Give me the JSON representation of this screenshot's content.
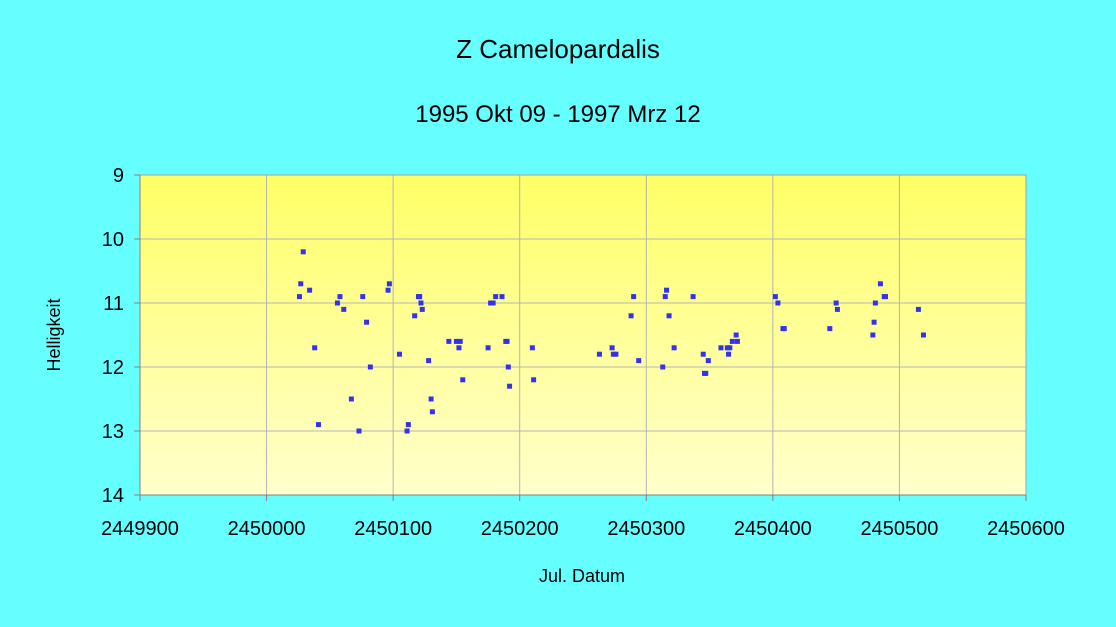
{
  "chart_data": {
    "type": "scatter",
    "title": "Z Camelopardalis",
    "subtitle": "1995 Okt 09 - 1997 Mrz 12",
    "xlabel": "Jul. Datum",
    "ylabel": "Helligkeit",
    "xlim": [
      2449900,
      2450600
    ],
    "ylim": [
      9,
      14
    ],
    "y_inverted": true,
    "grid": true,
    "x_ticks": [
      "2449900",
      "2450000",
      "2450100",
      "2450200",
      "2450300",
      "2450400",
      "2450500",
      "2450600"
    ],
    "y_ticks": [
      "9",
      "10",
      "11",
      "12",
      "13",
      "14"
    ],
    "colors": {
      "background": "#66ffff",
      "plot_top": "#ffff66",
      "plot_bottom": "#ffffcc",
      "marker": "#3333ee",
      "grid": "#b4b4b4"
    },
    "points": [
      [
        2450026,
        10.9
      ],
      [
        2450027,
        10.7
      ],
      [
        2450029,
        10.2
      ],
      [
        2450034,
        10.8
      ],
      [
        2450038,
        11.7
      ],
      [
        2450041,
        12.9
      ],
      [
        2450056,
        11.0
      ],
      [
        2450058,
        10.9
      ],
      [
        2450061,
        11.1
      ],
      [
        2450067,
        12.5
      ],
      [
        2450073,
        13.0
      ],
      [
        2450076,
        10.9
      ],
      [
        2450079,
        11.3
      ],
      [
        2450082,
        12.0
      ],
      [
        2450096,
        10.8
      ],
      [
        2450097,
        10.7
      ],
      [
        2450105,
        11.8
      ],
      [
        2450111,
        13.0
      ],
      [
        2450112,
        12.9
      ],
      [
        2450117,
        11.2
      ],
      [
        2450120,
        10.9
      ],
      [
        2450121,
        10.9
      ],
      [
        2450122,
        11.0
      ],
      [
        2450123,
        11.1
      ],
      [
        2450128,
        11.9
      ],
      [
        2450130,
        12.5
      ],
      [
        2450131,
        12.7
      ],
      [
        2450144,
        11.6
      ],
      [
        2450150,
        11.6
      ],
      [
        2450152,
        11.7
      ],
      [
        2450153,
        11.6
      ],
      [
        2450155,
        12.2
      ],
      [
        2450175,
        11.7
      ],
      [
        2450177,
        11.0
      ],
      [
        2450179,
        11.0
      ],
      [
        2450181,
        10.9
      ],
      [
        2450186,
        10.9
      ],
      [
        2450189,
        11.6
      ],
      [
        2450190,
        11.6
      ],
      [
        2450191,
        12.0
      ],
      [
        2450192,
        12.3
      ],
      [
        2450210,
        11.7
      ],
      [
        2450211,
        12.2
      ],
      [
        2450263,
        11.8
      ],
      [
        2450273,
        11.7
      ],
      [
        2450274,
        11.8
      ],
      [
        2450276,
        11.8
      ],
      [
        2450288,
        11.2
      ],
      [
        2450290,
        10.9
      ],
      [
        2450294,
        11.9
      ],
      [
        2450313,
        12.0
      ],
      [
        2450315,
        10.9
      ],
      [
        2450316,
        10.8
      ],
      [
        2450318,
        11.2
      ],
      [
        2450322,
        11.7
      ],
      [
        2450337,
        10.9
      ],
      [
        2450345,
        11.8
      ],
      [
        2450346,
        12.1
      ],
      [
        2450347,
        12.1
      ],
      [
        2450349,
        11.9
      ],
      [
        2450359,
        11.7
      ],
      [
        2450364,
        11.7
      ],
      [
        2450365,
        11.8
      ],
      [
        2450366,
        11.7
      ],
      [
        2450368,
        11.6
      ],
      [
        2450371,
        11.5
      ],
      [
        2450372,
        11.6
      ],
      [
        2450402,
        10.9
      ],
      [
        2450404,
        11.0
      ],
      [
        2450408,
        11.4
      ],
      [
        2450409,
        11.4
      ],
      [
        2450445,
        11.4
      ],
      [
        2450450,
        11.0
      ],
      [
        2450451,
        11.1
      ],
      [
        2450479,
        11.5
      ],
      [
        2450480,
        11.3
      ],
      [
        2450481,
        11.0
      ],
      [
        2450485,
        10.7
      ],
      [
        2450488,
        10.9
      ],
      [
        2450489,
        10.9
      ],
      [
        2450515,
        11.1
      ],
      [
        2450519,
        11.5
      ]
    ]
  }
}
